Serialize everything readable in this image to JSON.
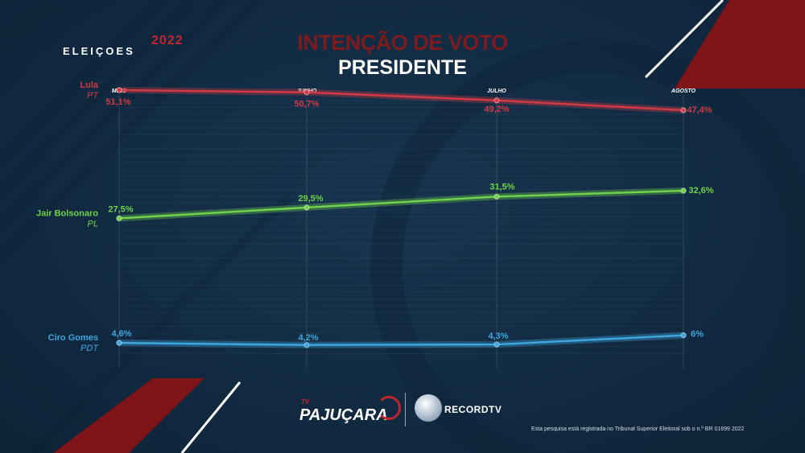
{
  "brand": {
    "name": "ELEIÇOES",
    "year": "2022"
  },
  "title": "INTENÇÃO DE VOTO",
  "subtitle": "PRESIDENTE",
  "chart_data": {
    "type": "line",
    "categories": [
      "MAIO",
      "JUNHO",
      "JULHO",
      "AGOSTO"
    ],
    "series": [
      {
        "name": "Lula",
        "party": "PT",
        "color": "#d13a44",
        "values": [
          51.1,
          50.7,
          49.2,
          47.4
        ],
        "labels": [
          "51,1%",
          "50,7%",
          "49,2%",
          "47,4%"
        ]
      },
      {
        "name": "Jair Bolsonaro",
        "party": "PL",
        "color": "#6fd24a",
        "values": [
          27.5,
          29.5,
          31.5,
          32.6
        ],
        "labels": [
          "27,5%",
          "29,5%",
          "31,5%",
          "32,6%"
        ]
      },
      {
        "name": "Ciro Gomes",
        "party": "PDT",
        "color": "#3ea6de",
        "values": [
          4.6,
          4.2,
          4.3,
          6
        ],
        "labels": [
          "4,6%",
          "4,2%",
          "4,3%",
          "6%"
        ]
      }
    ]
  },
  "footer": {
    "tv": "TV",
    "station": "PAJUÇARA",
    "network": "RECORDTV",
    "disclaimer": "Esta pesquisa está registrada no Tribunal Superior Eleitoral sob o n.º BR 01699 2022"
  }
}
